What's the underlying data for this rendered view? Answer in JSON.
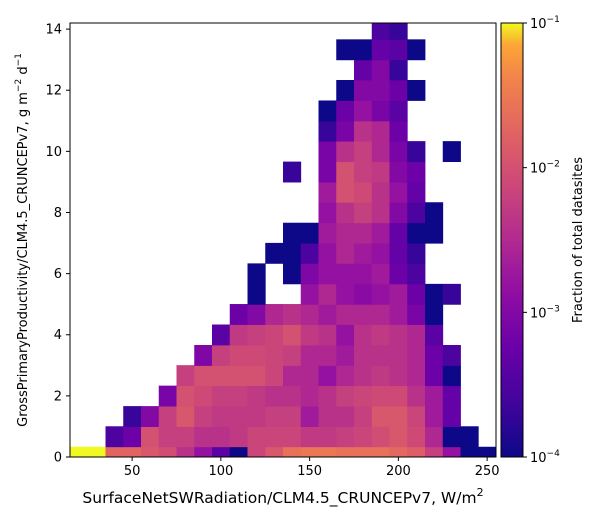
{
  "chart_data": {
    "type": "heatmap",
    "title": "",
    "xlabel": "SurfaceNetSWRadiation/CLM4.5_CRUNCEPv7,  W/m$^2$",
    "xlabel_text": "SurfaceNetSWRadiation/CLM4.5_CRUNCEPv7,  W/m",
    "xlabel_sup": "2",
    "ylabel_text": "GrossPrimaryProductivity/CLM4.5_CRUNCEPv7,  g m",
    "ylabel_sup1": "−2",
    "ylabel_mid": " d",
    "ylabel_sup2": "−1",
    "xlim": [
      15,
      255
    ],
    "ylim": [
      0,
      14.2
    ],
    "x_ticks": [
      50,
      100,
      150,
      200,
      250
    ],
    "y_ticks": [
      0,
      2,
      4,
      6,
      8,
      10,
      12,
      14
    ],
    "x_bin_width": 10,
    "y_bin_width": 0.67,
    "colormap": "plasma",
    "color_scale": "log",
    "colorbar": {
      "label": "Fraction of total datasites",
      "vmin": 0.0001,
      "vmax": 0.1,
      "tick_values": [
        0.0001,
        0.001,
        0.01,
        0.1
      ],
      "tick_bases": [
        "10",
        "10",
        "10",
        "10"
      ],
      "tick_exps": [
        "−4",
        "−3",
        "−2",
        "−1"
      ]
    },
    "cells": [
      {
        "x": 20,
        "y": 0,
        "v": 0.1
      },
      {
        "x": 30,
        "y": 0,
        "v": 0.1
      },
      {
        "x": 40,
        "y": 0,
        "v": 0.018
      },
      {
        "x": 50,
        "y": 0,
        "v": 0.018
      },
      {
        "x": 60,
        "y": 0,
        "v": 0.012
      },
      {
        "x": 70,
        "y": 0,
        "v": 0.009
      },
      {
        "x": 80,
        "y": 0,
        "v": 0.004
      },
      {
        "x": 90,
        "y": 0,
        "v": 0.0015
      },
      {
        "x": 100,
        "y": 0,
        "v": 0.0004
      },
      {
        "x": 110,
        "y": 0,
        "v": 0.0001
      },
      {
        "x": 120,
        "y": 0,
        "v": 0.007
      },
      {
        "x": 130,
        "y": 0,
        "v": 0.012
      },
      {
        "x": 140,
        "y": 0,
        "v": 0.025
      },
      {
        "x": 150,
        "y": 0,
        "v": 0.03
      },
      {
        "x": 160,
        "y": 0,
        "v": 0.03
      },
      {
        "x": 170,
        "y": 0,
        "v": 0.025
      },
      {
        "x": 180,
        "y": 0,
        "v": 0.025
      },
      {
        "x": 190,
        "y": 0,
        "v": 0.025
      },
      {
        "x": 200,
        "y": 0,
        "v": 0.02
      },
      {
        "x": 210,
        "y": 0,
        "v": 0.015
      },
      {
        "x": 220,
        "y": 0,
        "v": 0.006
      },
      {
        "x": 230,
        "y": 0,
        "v": 0.0015
      },
      {
        "x": 240,
        "y": 0,
        "v": 0.0001
      },
      {
        "x": 250,
        "y": 0,
        "v": 0.0001
      },
      {
        "x": 40,
        "y": 0.67,
        "v": 0.0003
      },
      {
        "x": 50,
        "y": 0.67,
        "v": 0.0006
      },
      {
        "x": 60,
        "y": 0.67,
        "v": 0.01
      },
      {
        "x": 70,
        "y": 0.67,
        "v": 0.006
      },
      {
        "x": 80,
        "y": 0.67,
        "v": 0.006
      },
      {
        "x": 90,
        "y": 0.67,
        "v": 0.004
      },
      {
        "x": 100,
        "y": 0.67,
        "v": 0.004
      },
      {
        "x": 110,
        "y": 0.67,
        "v": 0.005
      },
      {
        "x": 120,
        "y": 0.67,
        "v": 0.007
      },
      {
        "x": 130,
        "y": 0.67,
        "v": 0.007
      },
      {
        "x": 140,
        "y": 0.67,
        "v": 0.007
      },
      {
        "x": 150,
        "y": 0.67,
        "v": 0.005
      },
      {
        "x": 160,
        "y": 0.67,
        "v": 0.005
      },
      {
        "x": 170,
        "y": 0.67,
        "v": 0.006
      },
      {
        "x": 180,
        "y": 0.67,
        "v": 0.007
      },
      {
        "x": 190,
        "y": 0.67,
        "v": 0.009
      },
      {
        "x": 200,
        "y": 0.67,
        "v": 0.012
      },
      {
        "x": 210,
        "y": 0.67,
        "v": 0.008
      },
      {
        "x": 220,
        "y": 0.67,
        "v": 0.003
      },
      {
        "x": 230,
        "y": 0.67,
        "v": 0.0001
      },
      {
        "x": 240,
        "y": 0.67,
        "v": 0.0001
      },
      {
        "x": 50,
        "y": 1.33,
        "v": 0.0002
      },
      {
        "x": 60,
        "y": 1.33,
        "v": 0.001
      },
      {
        "x": 70,
        "y": 1.33,
        "v": 0.006
      },
      {
        "x": 80,
        "y": 1.33,
        "v": 0.012
      },
      {
        "x": 90,
        "y": 1.33,
        "v": 0.006
      },
      {
        "x": 100,
        "y": 1.33,
        "v": 0.005
      },
      {
        "x": 110,
        "y": 1.33,
        "v": 0.005
      },
      {
        "x": 120,
        "y": 1.33,
        "v": 0.005
      },
      {
        "x": 130,
        "y": 1.33,
        "v": 0.006
      },
      {
        "x": 140,
        "y": 1.33,
        "v": 0.006
      },
      {
        "x": 150,
        "y": 1.33,
        "v": 0.002
      },
      {
        "x": 160,
        "y": 1.33,
        "v": 0.004
      },
      {
        "x": 170,
        "y": 1.33,
        "v": 0.004
      },
      {
        "x": 180,
        "y": 1.33,
        "v": 0.006
      },
      {
        "x": 190,
        "y": 1.33,
        "v": 0.012
      },
      {
        "x": 200,
        "y": 1.33,
        "v": 0.012
      },
      {
        "x": 210,
        "y": 1.33,
        "v": 0.007
      },
      {
        "x": 220,
        "y": 1.33,
        "v": 0.002
      },
      {
        "x": 230,
        "y": 1.33,
        "v": 0.0005
      },
      {
        "x": 70,
        "y": 2,
        "v": 0.0008
      },
      {
        "x": 80,
        "y": 2,
        "v": 0.01
      },
      {
        "x": 90,
        "y": 2,
        "v": 0.008
      },
      {
        "x": 100,
        "y": 2,
        "v": 0.006
      },
      {
        "x": 110,
        "y": 2,
        "v": 0.006
      },
      {
        "x": 120,
        "y": 2,
        "v": 0.005
      },
      {
        "x": 130,
        "y": 2,
        "v": 0.004
      },
      {
        "x": 140,
        "y": 2,
        "v": 0.004
      },
      {
        "x": 150,
        "y": 2,
        "v": 0.003
      },
      {
        "x": 160,
        "y": 2,
        "v": 0.004
      },
      {
        "x": 170,
        "y": 2,
        "v": 0.006
      },
      {
        "x": 180,
        "y": 2,
        "v": 0.007
      },
      {
        "x": 190,
        "y": 2,
        "v": 0.008
      },
      {
        "x": 200,
        "y": 2,
        "v": 0.008
      },
      {
        "x": 210,
        "y": 2,
        "v": 0.004
      },
      {
        "x": 220,
        "y": 2,
        "v": 0.002
      },
      {
        "x": 230,
        "y": 2,
        "v": 0.0005
      },
      {
        "x": 80,
        "y": 2.67,
        "v": 0.006
      },
      {
        "x": 90,
        "y": 2.67,
        "v": 0.01
      },
      {
        "x": 100,
        "y": 2.67,
        "v": 0.01
      },
      {
        "x": 110,
        "y": 2.67,
        "v": 0.01
      },
      {
        "x": 120,
        "y": 2.67,
        "v": 0.01
      },
      {
        "x": 130,
        "y": 2.67,
        "v": 0.007
      },
      {
        "x": 140,
        "y": 2.67,
        "v": 0.003
      },
      {
        "x": 150,
        "y": 2.67,
        "v": 0.003
      },
      {
        "x": 160,
        "y": 2.67,
        "v": 0.0015
      },
      {
        "x": 170,
        "y": 2.67,
        "v": 0.003
      },
      {
        "x": 180,
        "y": 2.67,
        "v": 0.004
      },
      {
        "x": 190,
        "y": 2.67,
        "v": 0.005
      },
      {
        "x": 200,
        "y": 2.67,
        "v": 0.004
      },
      {
        "x": 210,
        "y": 2.67,
        "v": 0.003
      },
      {
        "x": 220,
        "y": 2.67,
        "v": 0.0006
      },
      {
        "x": 230,
        "y": 2.67,
        "v": 0.0001
      },
      {
        "x": 90,
        "y": 3.33,
        "v": 0.0009
      },
      {
        "x": 100,
        "y": 3.33,
        "v": 0.006
      },
      {
        "x": 110,
        "y": 3.33,
        "v": 0.008
      },
      {
        "x": 120,
        "y": 3.33,
        "v": 0.008
      },
      {
        "x": 130,
        "y": 3.33,
        "v": 0.007
      },
      {
        "x": 140,
        "y": 3.33,
        "v": 0.006
      },
      {
        "x": 150,
        "y": 3.33,
        "v": 0.003
      },
      {
        "x": 160,
        "y": 3.33,
        "v": 0.003
      },
      {
        "x": 170,
        "y": 3.33,
        "v": 0.002
      },
      {
        "x": 180,
        "y": 3.33,
        "v": 0.004
      },
      {
        "x": 190,
        "y": 3.33,
        "v": 0.004
      },
      {
        "x": 200,
        "y": 3.33,
        "v": 0.004
      },
      {
        "x": 210,
        "y": 3.33,
        "v": 0.003
      },
      {
        "x": 220,
        "y": 3.33,
        "v": 0.0006
      },
      {
        "x": 230,
        "y": 3.33,
        "v": 0.0003
      },
      {
        "x": 100,
        "y": 4,
        "v": 0.0004
      },
      {
        "x": 110,
        "y": 4,
        "v": 0.005
      },
      {
        "x": 120,
        "y": 4,
        "v": 0.006
      },
      {
        "x": 130,
        "y": 4,
        "v": 0.007
      },
      {
        "x": 140,
        "y": 4,
        "v": 0.01
      },
      {
        "x": 150,
        "y": 4,
        "v": 0.005
      },
      {
        "x": 160,
        "y": 4,
        "v": 0.004
      },
      {
        "x": 170,
        "y": 4,
        "v": 0.0015
      },
      {
        "x": 180,
        "y": 4,
        "v": 0.004
      },
      {
        "x": 190,
        "y": 4,
        "v": 0.005
      },
      {
        "x": 200,
        "y": 4,
        "v": 0.004
      },
      {
        "x": 210,
        "y": 4,
        "v": 0.003
      },
      {
        "x": 220,
        "y": 4,
        "v": 0.0004
      },
      {
        "x": 110,
        "y": 4.67,
        "v": 0.0006
      },
      {
        "x": 120,
        "y": 4.67,
        "v": 0.001
      },
      {
        "x": 130,
        "y": 4.67,
        "v": 0.003
      },
      {
        "x": 140,
        "y": 4.67,
        "v": 0.004
      },
      {
        "x": 150,
        "y": 4.67,
        "v": 0.003
      },
      {
        "x": 160,
        "y": 4.67,
        "v": 0.002
      },
      {
        "x": 170,
        "y": 4.67,
        "v": 0.003
      },
      {
        "x": 180,
        "y": 4.67,
        "v": 0.003
      },
      {
        "x": 190,
        "y": 4.67,
        "v": 0.003
      },
      {
        "x": 200,
        "y": 4.67,
        "v": 0.002
      },
      {
        "x": 210,
        "y": 4.67,
        "v": 0.0008
      },
      {
        "x": 220,
        "y": 4.67,
        "v": 0.0001
      },
      {
        "x": 120,
        "y": 5.33,
        "v": 0.0001
      },
      {
        "x": 150,
        "y": 5.33,
        "v": 0.0015
      },
      {
        "x": 160,
        "y": 5.33,
        "v": 0.003
      },
      {
        "x": 170,
        "y": 5.33,
        "v": 0.0015
      },
      {
        "x": 180,
        "y": 5.33,
        "v": 0.0012
      },
      {
        "x": 190,
        "y": 5.33,
        "v": 0.0015
      },
      {
        "x": 200,
        "y": 5.33,
        "v": 0.002
      },
      {
        "x": 210,
        "y": 5.33,
        "v": 0.0006
      },
      {
        "x": 220,
        "y": 5.33,
        "v": 0.0001
      },
      {
        "x": 230,
        "y": 5.33,
        "v": 0.0002
      },
      {
        "x": 120,
        "y": 6,
        "v": 0.0001
      },
      {
        "x": 140,
        "y": 6,
        "v": 0.0001
      },
      {
        "x": 150,
        "y": 6,
        "v": 0.0009
      },
      {
        "x": 160,
        "y": 6,
        "v": 0.0015
      },
      {
        "x": 170,
        "y": 6,
        "v": 0.0015
      },
      {
        "x": 180,
        "y": 6,
        "v": 0.0015
      },
      {
        "x": 190,
        "y": 6,
        "v": 0.002
      },
      {
        "x": 200,
        "y": 6,
        "v": 0.0006
      },
      {
        "x": 210,
        "y": 6,
        "v": 0.0003
      },
      {
        "x": 130,
        "y": 6.67,
        "v": 0.0001
      },
      {
        "x": 140,
        "y": 6.67,
        "v": 0.0001
      },
      {
        "x": 150,
        "y": 6.67,
        "v": 0.0003
      },
      {
        "x": 160,
        "y": 6.67,
        "v": 0.0015
      },
      {
        "x": 170,
        "y": 6.67,
        "v": 0.003
      },
      {
        "x": 180,
        "y": 6.67,
        "v": 0.002
      },
      {
        "x": 190,
        "y": 6.67,
        "v": 0.0015
      },
      {
        "x": 200,
        "y": 6.67,
        "v": 0.0005
      },
      {
        "x": 210,
        "y": 6.67,
        "v": 0.0002
      },
      {
        "x": 140,
        "y": 7.33,
        "v": 0.0001
      },
      {
        "x": 150,
        "y": 7.33,
        "v": 0.0001
      },
      {
        "x": 160,
        "y": 7.33,
        "v": 0.002
      },
      {
        "x": 170,
        "y": 7.33,
        "v": 0.003
      },
      {
        "x": 180,
        "y": 7.33,
        "v": 0.003
      },
      {
        "x": 190,
        "y": 7.33,
        "v": 0.002
      },
      {
        "x": 200,
        "y": 7.33,
        "v": 0.0005
      },
      {
        "x": 210,
        "y": 7.33,
        "v": 0.0001
      },
      {
        "x": 220,
        "y": 7.33,
        "v": 0.0001
      },
      {
        "x": 160,
        "y": 8,
        "v": 0.0015
      },
      {
        "x": 170,
        "y": 8,
        "v": 0.004
      },
      {
        "x": 180,
        "y": 8,
        "v": 0.006
      },
      {
        "x": 190,
        "y": 8,
        "v": 0.004
      },
      {
        "x": 200,
        "y": 8,
        "v": 0.001
      },
      {
        "x": 210,
        "y": 8,
        "v": 0.0003
      },
      {
        "x": 220,
        "y": 8,
        "v": 0.0001
      },
      {
        "x": 160,
        "y": 8.67,
        "v": 0.002
      },
      {
        "x": 170,
        "y": 8.67,
        "v": 0.01
      },
      {
        "x": 180,
        "y": 8.67,
        "v": 0.008
      },
      {
        "x": 190,
        "y": 8.67,
        "v": 0.004
      },
      {
        "x": 200,
        "y": 8.67,
        "v": 0.0015
      },
      {
        "x": 210,
        "y": 8.67,
        "v": 0.0005
      },
      {
        "x": 140,
        "y": 9.33,
        "v": 0.0002
      },
      {
        "x": 160,
        "y": 9.33,
        "v": 0.0008
      },
      {
        "x": 170,
        "y": 9.33,
        "v": 0.01
      },
      {
        "x": 180,
        "y": 9.33,
        "v": 0.006
      },
      {
        "x": 190,
        "y": 9.33,
        "v": 0.005
      },
      {
        "x": 200,
        "y": 9.33,
        "v": 0.001
      },
      {
        "x": 210,
        "y": 9.33,
        "v": 0.0006
      },
      {
        "x": 160,
        "y": 10,
        "v": 0.0008
      },
      {
        "x": 170,
        "y": 10,
        "v": 0.004
      },
      {
        "x": 180,
        "y": 10,
        "v": 0.006
      },
      {
        "x": 190,
        "y": 10,
        "v": 0.003
      },
      {
        "x": 200,
        "y": 10,
        "v": 0.0008
      },
      {
        "x": 210,
        "y": 10,
        "v": 0.0002
      },
      {
        "x": 230,
        "y": 10,
        "v": 0.0001
      },
      {
        "x": 160,
        "y": 10.67,
        "v": 0.0002
      },
      {
        "x": 170,
        "y": 10.67,
        "v": 0.0008
      },
      {
        "x": 180,
        "y": 10.67,
        "v": 0.004
      },
      {
        "x": 190,
        "y": 10.67,
        "v": 0.003
      },
      {
        "x": 200,
        "y": 10.67,
        "v": 0.0006
      },
      {
        "x": 160,
        "y": 11.33,
        "v": 0.0001
      },
      {
        "x": 170,
        "y": 11.33,
        "v": 0.0006
      },
      {
        "x": 180,
        "y": 11.33,
        "v": 0.0015
      },
      {
        "x": 190,
        "y": 11.33,
        "v": 0.0008
      },
      {
        "x": 200,
        "y": 11.33,
        "v": 0.0004
      },
      {
        "x": 170,
        "y": 12,
        "v": 0.0001
      },
      {
        "x": 180,
        "y": 12,
        "v": 0.001
      },
      {
        "x": 190,
        "y": 12,
        "v": 0.001
      },
      {
        "x": 200,
        "y": 12,
        "v": 0.0006
      },
      {
        "x": 210,
        "y": 12,
        "v": 0.0001
      },
      {
        "x": 180,
        "y": 12.67,
        "v": 0.0005
      },
      {
        "x": 190,
        "y": 12.67,
        "v": 0.001
      },
      {
        "x": 200,
        "y": 12.67,
        "v": 0.0002
      },
      {
        "x": 170,
        "y": 13.33,
        "v": 0.0001
      },
      {
        "x": 180,
        "y": 13.33,
        "v": 0.0001
      },
      {
        "x": 190,
        "y": 13.33,
        "v": 0.0005
      },
      {
        "x": 200,
        "y": 13.33,
        "v": 0.0004
      },
      {
        "x": 210,
        "y": 13.33,
        "v": 0.0001
      },
      {
        "x": 190,
        "y": 14,
        "v": 0.0003
      },
      {
        "x": 200,
        "y": 14,
        "v": 0.0002
      }
    ]
  }
}
